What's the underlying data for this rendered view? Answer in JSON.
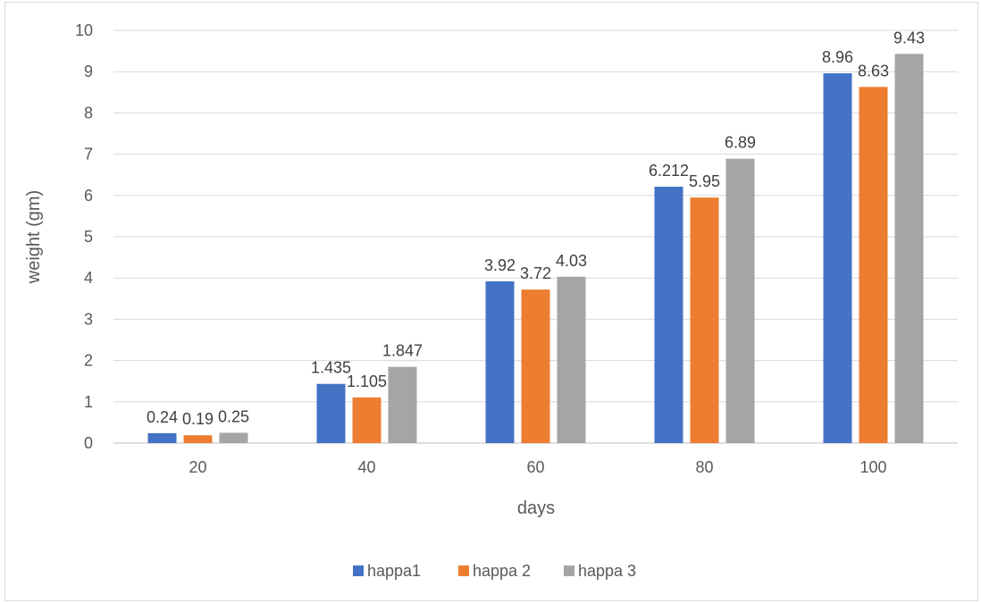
{
  "chart_data": {
    "type": "bar",
    "title": "",
    "xlabel": "days",
    "ylabel": "weight (gm)",
    "categories": [
      "20",
      "40",
      "60",
      "80",
      "100"
    ],
    "series": [
      {
        "name": "happa1",
        "color": "#4472c4",
        "values": [
          0.24,
          1.435,
          3.92,
          6.212,
          8.96
        ],
        "labels": [
          "0.24",
          "1.435",
          "3.92",
          "6.212",
          "8.96"
        ]
      },
      {
        "name": "happa 2",
        "color": "#ed7d31",
        "values": [
          0.19,
          1.105,
          3.72,
          5.95,
          8.63
        ],
        "labels": [
          "0.19",
          "1.105",
          "3.72",
          "5.95",
          "8.63"
        ]
      },
      {
        "name": "happa 3",
        "color": "#a5a5a5",
        "values": [
          0.25,
          1.847,
          4.03,
          6.89,
          9.43
        ],
        "labels": [
          "0.25",
          "1.847",
          "4.03",
          "6.89",
          "9.43"
        ]
      }
    ],
    "ylim": [
      0,
      10
    ],
    "yticks": [
      "0",
      "1",
      "2",
      "3",
      "4",
      "5",
      "6",
      "7",
      "8",
      "9",
      "10"
    ],
    "grid": true,
    "legend_position": "bottom"
  }
}
